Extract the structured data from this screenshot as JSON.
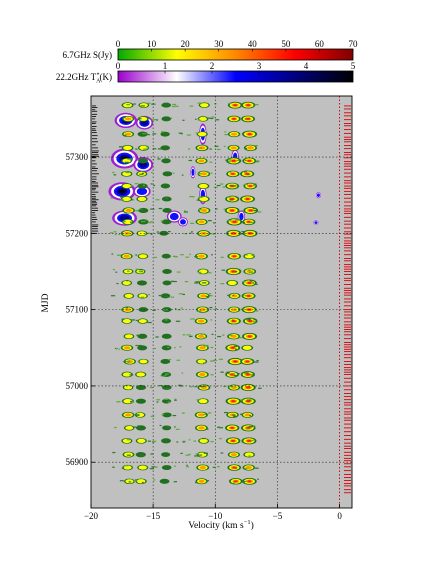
{
  "chart_data": {
    "type": "heatmap",
    "xlabel_main": "Velocity (km s",
    "xlabel_sup": "−1",
    "xlabel_close": ")",
    "ylabel": "MJD",
    "xlim": [
      -20,
      1
    ],
    "ylim": [
      56840,
      57380
    ],
    "x_ticks": [
      -20,
      -15,
      -10,
      -5,
      0
    ],
    "y_ticks": [
      56900,
      57000,
      57100,
      57200,
      57300
    ],
    "grid": "dotted",
    "colorbar_methanol": {
      "label": "6.7GHz S(Jy)",
      "ticks": [
        0,
        10,
        20,
        30,
        40,
        50,
        60,
        70
      ],
      "range": [
        0,
        70
      ],
      "colors": [
        "#00aa00",
        "#ffff00",
        "#ff8800",
        "#ff0000",
        "#800000"
      ]
    },
    "colorbar_water": {
      "label_prefix": "22.2GHz T",
      "label_sup": "*",
      "label_sub": "A",
      "label_suffix": "(K)",
      "ticks": [
        0,
        1,
        2,
        3,
        4,
        5
      ],
      "range": [
        0,
        5
      ],
      "colors": [
        "#9900cc",
        "#ffffff",
        "#0000ff",
        "#000080",
        "#000000"
      ]
    },
    "background_color": "#c0c0c0",
    "methanol_features_kms": [
      -17.0,
      -15.9,
      -14.0,
      -11.0,
      -8.5,
      -7.3
    ],
    "water_features_kms": [
      -17.3,
      -15.7,
      -13.3,
      -11.0,
      -8.5,
      -7.4,
      -1.7
    ],
    "water_epoch_range_mjd": [
      57200,
      57370
    ]
  }
}
